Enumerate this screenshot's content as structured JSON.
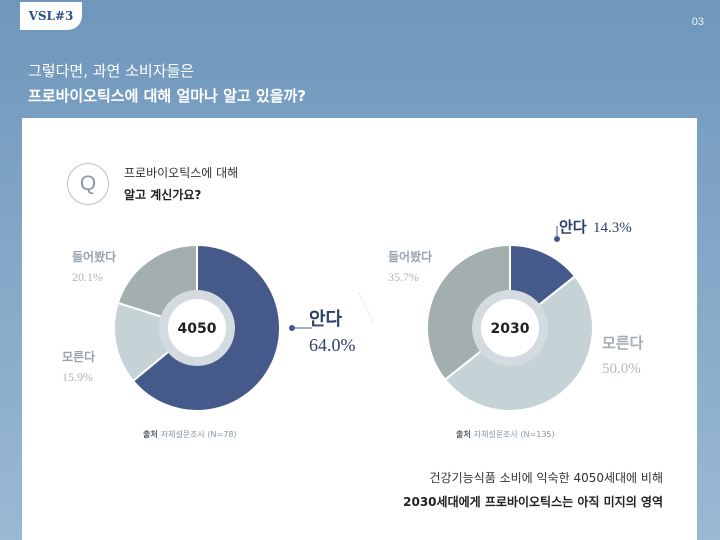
{
  "brand": {
    "logo_text": "VSL#3"
  },
  "page_number": "03",
  "heading": {
    "line1": "그렇다면, 과연 소비자들은",
    "line2": "프로바이오틱스에 대해 얼마나 알고 있을까?"
  },
  "question": {
    "mark": "Q",
    "line1": "프로바이오틱스에 대해",
    "line2": "알고 계신가요?"
  },
  "colors": {
    "know": "#45598a",
    "heard": "#a3aeae",
    "dontknow": "#c5d3d6",
    "ring": "#d4dbe0",
    "center_dot": "#45598a"
  },
  "chart_data": [
    {
      "type": "pie",
      "center_label": "4050",
      "slices": [
        {
          "label": "안다",
          "value": 64.0,
          "display": "64.0%"
        },
        {
          "label": "모른다",
          "value": 15.9,
          "display": "15.9%"
        },
        {
          "label": "들어봤다",
          "value": 20.1,
          "display": "20.1%"
        }
      ],
      "source_label": "출처",
      "source_text": "자체설문조사 (N=78)"
    },
    {
      "type": "pie",
      "center_label": "2030",
      "slices": [
        {
          "label": "안다",
          "value": 14.3,
          "display": "14.3%"
        },
        {
          "label": "모른다",
          "value": 50.0,
          "display": "50.0%"
        },
        {
          "label": "들어봤다",
          "value": 35.7,
          "display": "35.7%"
        }
      ],
      "source_label": "출처",
      "source_text": "자체설문조사 (N=135)"
    }
  ],
  "summary": {
    "line1": "건강기능식품 소비에 익숙한 4050세대에 비해",
    "line2": "2030세대에게 프로바이오틱스는 아직 미지의 영역"
  }
}
